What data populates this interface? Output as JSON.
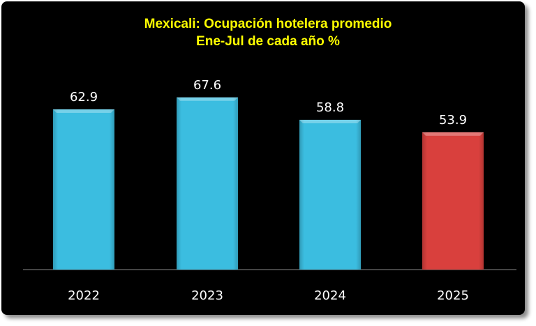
{
  "chart_data": {
    "type": "bar",
    "title": "Mexicali: Ocupación hotelera promedio",
    "subtitle": "Ene-Jul de cada año %",
    "categories": [
      "2022",
      "2023",
      "2024",
      "2025"
    ],
    "values": [
      62.9,
      67.6,
      58.8,
      53.9
    ],
    "data_labels": [
      "62.9",
      "67.6",
      "58.8",
      "53.9"
    ],
    "bar_colors": [
      "#3bbde0",
      "#3bbde0",
      "#3bbde0",
      "#d9403d"
    ],
    "xlabel": "",
    "ylabel": "",
    "ylim": [
      0,
      70
    ],
    "grid": false,
    "legend": "none",
    "background": "#000000",
    "title_color": "#ffff00"
  }
}
